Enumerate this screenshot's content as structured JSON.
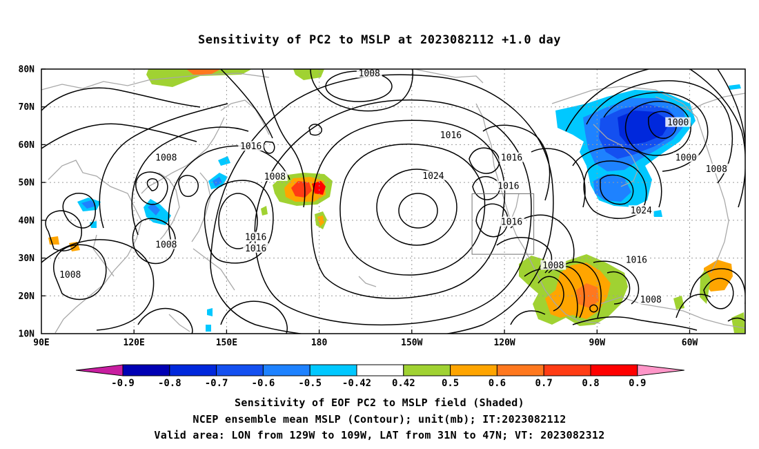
{
  "title": "Sensitivity of PC2 to MSLP at 2023082112 +1.0 day",
  "map": {
    "lat_labels": [
      "80N",
      "70N",
      "60N",
      "50N",
      "40N",
      "30N",
      "20N",
      "10N"
    ],
    "lon_labels": [
      "90E",
      "120E",
      "150E",
      "180",
      "150W",
      "120W",
      "90W",
      "60W"
    ],
    "contour_labels": [
      {
        "text": "1008",
        "lon": -167.5,
        "lat": 78.8
      },
      {
        "text": "1016",
        "lon": -142,
        "lat": 62.5
      },
      {
        "text": "1016",
        "lon": 155.5,
        "lat": 59.5
      },
      {
        "text": "1008",
        "lon": 129,
        "lat": 56.5
      },
      {
        "text": "1008",
        "lon": 163,
        "lat": 51.5
      },
      {
        "text": "1016",
        "lon": -123,
        "lat": 56.5
      },
      {
        "text": "1024",
        "lon": -147.5,
        "lat": 51.7
      },
      {
        "text": "1016",
        "lon": -124,
        "lat": 49
      },
      {
        "text": "1016",
        "lon": -123,
        "lat": 39.5
      },
      {
        "text": "1016",
        "lon": 157,
        "lat": 35.5
      },
      {
        "text": "1016",
        "lon": 157,
        "lat": 32.5
      },
      {
        "text": "1008",
        "lon": 129,
        "lat": 33.5
      },
      {
        "text": "1008",
        "lon": 99,
        "lat": 25.5
      },
      {
        "text": "1008",
        "lon": -110,
        "lat": 28
      },
      {
        "text": "1016",
        "lon": -84,
        "lat": 29.5
      },
      {
        "text": "1008",
        "lon": -79.5,
        "lat": 19
      },
      {
        "text": "1000",
        "lon": -71,
        "lat": 65.8
      },
      {
        "text": "1000",
        "lon": -68.5,
        "lat": 56.5
      },
      {
        "text": "1008",
        "lon": -59,
        "lat": 53.5
      },
      {
        "text": "1024",
        "lon": -82.5,
        "lat": 42.5
      }
    ]
  },
  "colorbar": {
    "labels": [
      "-0.9",
      "-0.8",
      "-0.7",
      "-0.6",
      "-0.5",
      "-0.42",
      "0.42",
      "0.5",
      "0.6",
      "0.7",
      "0.8",
      "0.9"
    ],
    "colors": [
      "#0000b4",
      "#0028dc",
      "#1450f0",
      "#1e82ff",
      "#00c8ff",
      "#ffffff",
      "#a0d232",
      "#ffa500",
      "#ff781e",
      "#ff3c14",
      "#ff0000"
    ],
    "low_color": "#c81ea0",
    "high_color": "#ff96c8"
  },
  "footer": {
    "line1": "Sensitivity of EOF PC2 to MSLP field (Shaded)",
    "line2": "NCEP ensemble mean MSLP (Contour); unit(mb); IT:2023082112",
    "line3": "Valid area: LON from 129W to 109W, LAT from 31N to 47N; VT: 2023082312"
  }
}
